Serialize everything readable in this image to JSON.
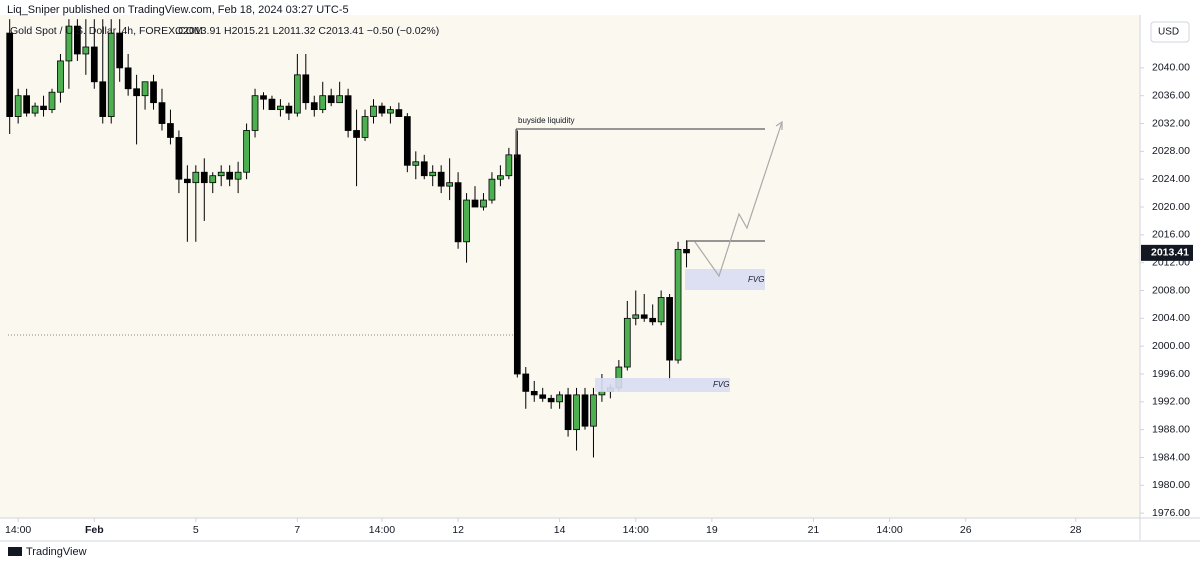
{
  "header": "Liq_Sniper published on TradingView.com, Feb 18, 2024 03:27 UTC-5",
  "footer": "TradingView",
  "chart_data": {
    "type": "candlestick",
    "title": "Gold Spot / U.S. Dollar, 4h, FOREX.COM",
    "ohlc_label": "O2013.91 H2015.21 L2011.32 C2013.41 −0.50 (−0.02%)",
    "currency": "USD",
    "annotations": [
      "buyside liquidity",
      "FVG",
      "FVG"
    ],
    "up_color": "#4caf50",
    "down_color": "#000000",
    "x": [
      0,
      1,
      2,
      3,
      4,
      5,
      6,
      7,
      8,
      9,
      10,
      11,
      12,
      13,
      14,
      15,
      16,
      17,
      18,
      19,
      20,
      21,
      22,
      23,
      24,
      25,
      26,
      27,
      28,
      29,
      30,
      31,
      32,
      33,
      34,
      35,
      36,
      37,
      38,
      39,
      40,
      41,
      42,
      43,
      44,
      45,
      46,
      47,
      48,
      49,
      50,
      51,
      52,
      53,
      54,
      55,
      56,
      57,
      58,
      59,
      60,
      61,
      62,
      63,
      64,
      65,
      66,
      67,
      68,
      69,
      70,
      71,
      72,
      73,
      74,
      75,
      76,
      77,
      78,
      79,
      80
    ],
    "open": [
      2045,
      2033,
      2036,
      2033.5,
      2034.5,
      2034,
      2036.5,
      2041,
      2046,
      2042,
      2043,
      2038,
      2033,
      2045,
      2040,
      2037,
      2036,
      2038,
      2035,
      2032,
      2030,
      2024,
      2023.5,
      2025,
      2023.5,
      2024.5,
      2025,
      2024,
      2025,
      2031,
      2036,
      2035.5,
      2034,
      2034.5,
      2033.5,
      2039,
      2035,
      2034,
      2036,
      2035,
      2036,
      2031,
      2030,
      2033,
      2034.5,
      2033.5,
      2034,
      2033,
      2026,
      2026.5,
      2024.5,
      2025,
      2023,
      2023.5,
      2015,
      2021,
      2020,
      2021,
      2024,
      2024.5,
      2027.5,
      1996,
      1993.5,
      1993,
      1992.5,
      1992,
      1993,
      1988,
      1993,
      1988.5,
      1993,
      1993.5,
      1994,
      1997,
      2004,
      2004.5,
      2004,
      2003.5,
      2007,
      1998,
      2013.91
    ],
    "high": [
      2047,
      2037,
      2037,
      2035,
      2036,
      2037,
      2042,
      2047,
      2047,
      2047,
      2047,
      2047,
      2047,
      2047,
      2042,
      2039,
      2038,
      2039,
      2037,
      2034,
      2031,
      2026,
      2026,
      2027,
      2025,
      2026,
      2026,
      2026.5,
      2032,
      2037,
      2036.5,
      2036,
      2035.5,
      2035,
      2042,
      2042,
      2036,
      2038,
      2037,
      2038,
      2037,
      2034,
      2034,
      2035.5,
      2035,
      2034.5,
      2035,
      2033.5,
      2028,
      2027.5,
      2026,
      2026,
      2027,
      2025,
      2022,
      2023,
      2022,
      2025,
      2026,
      2028.5,
      2031,
      1997,
      1995,
      1994,
      1993,
      1993.5,
      1994,
      1994,
      1994,
      1994,
      1996,
      1994.5,
      1998,
      2006.5,
      2008,
      2007.5,
      2006,
      2008,
      2007.5,
      2015,
      2015.21
    ],
    "low": [
      2030.5,
      2032,
      2033,
      2033,
      2033,
      2033.5,
      2035,
      2037,
      2041,
      2039,
      2037,
      2032,
      2032,
      2038,
      2036,
      2029,
      2034,
      2034,
      2031,
      2029,
      2022,
      2015,
      2015,
      2018,
      2022,
      2023,
      2023,
      2022,
      2024,
      2030,
      2034,
      2034,
      2033,
      2032.5,
      2033,
      2034,
      2033,
      2033.5,
      2034.5,
      2035,
      2030,
      2023,
      2029.5,
      2032,
      2033,
      2032,
      2033,
      2025,
      2024,
      2024,
      2023,
      2022,
      2021,
      2014,
      2012,
      2020,
      2019.5,
      2020.5,
      2023,
      2024,
      1995.5,
      1991,
      1992,
      1992,
      1991,
      1991,
      1987,
      1985,
      1988,
      1984,
      1992,
      1992.5,
      1993.5,
      1996.5,
      2003,
      2003.5,
      2003,
      2003,
      1995,
      1997.5,
      2011.32
    ],
    "close": [
      2033,
      2036,
      2033.5,
      2034.5,
      2034,
      2036.5,
      2041,
      2046,
      2042,
      2043,
      2038,
      2033,
      2045,
      2040,
      2037,
      2036,
      2038,
      2035,
      2032,
      2030,
      2024,
      2023.5,
      2025,
      2023.5,
      2024.5,
      2025,
      2024,
      2025,
      2031,
      2036,
      2035.5,
      2034,
      2034.5,
      2033.5,
      2039,
      2035,
      2034,
      2036,
      2035,
      2036,
      2031,
      2030,
      2033,
      2034.5,
      2033.5,
      2034,
      2033,
      2026,
      2026.5,
      2024.5,
      2025,
      2023,
      2023.5,
      2015,
      2021,
      2020,
      2021,
      2024,
      2024.5,
      2027.5,
      1996,
      1993.5,
      1993,
      1992.5,
      1992,
      1993,
      1988,
      1993,
      1988.5,
      1993,
      1993.5,
      1994,
      1997,
      2004,
      2004.5,
      2004,
      2003.5,
      2007,
      1998,
      2013.91,
      2013.41
    ],
    "xlim": [
      -0.2,
      133.6
    ],
    "xticks": [
      {
        "value": 1,
        "label": "14:00"
      },
      {
        "value": 10,
        "label": "Feb"
      },
      {
        "value": 22,
        "label": "5"
      },
      {
        "value": 34,
        "label": "7"
      },
      {
        "value": 44,
        "label": "14:00"
      },
      {
        "value": 53,
        "label": "12"
      },
      {
        "value": 65,
        "label": "14"
      },
      {
        "value": 74,
        "label": "14:00"
      },
      {
        "value": 83,
        "label": "19"
      },
      {
        "value": 95,
        "label": "21"
      },
      {
        "value": 104,
        "label": "14:00"
      },
      {
        "value": 113,
        "label": "26"
      },
      {
        "value": 126,
        "label": "28"
      }
    ],
    "ylim": [
      1975.3,
      2047.6
    ],
    "yticks": [
      {
        "value": 1976,
        "label": "1976.00"
      },
      {
        "value": 1980,
        "label": "1980.00"
      },
      {
        "value": 1984,
        "label": "1984.00"
      },
      {
        "value": 1988,
        "label": "1988.00"
      },
      {
        "value": 1992,
        "label": "1992.00"
      },
      {
        "value": 1996,
        "label": "1996.00"
      },
      {
        "value": 2000,
        "label": "2000.00"
      },
      {
        "value": 2004,
        "label": "2004.00"
      },
      {
        "value": 2008,
        "label": "2008.00"
      },
      {
        "value": 2012,
        "label": "2012.00"
      },
      {
        "value": 2016,
        "label": "2016.00"
      },
      {
        "value": 2020,
        "label": "2020.00"
      },
      {
        "value": 2024,
        "label": "2024.00"
      },
      {
        "value": 2028,
        "label": "2028.00"
      },
      {
        "value": 2032,
        "label": "2032.00"
      },
      {
        "value": 2036,
        "label": "2036.00"
      },
      {
        "value": 2040,
        "label": "2040.00"
      }
    ],
    "grid": false
  }
}
